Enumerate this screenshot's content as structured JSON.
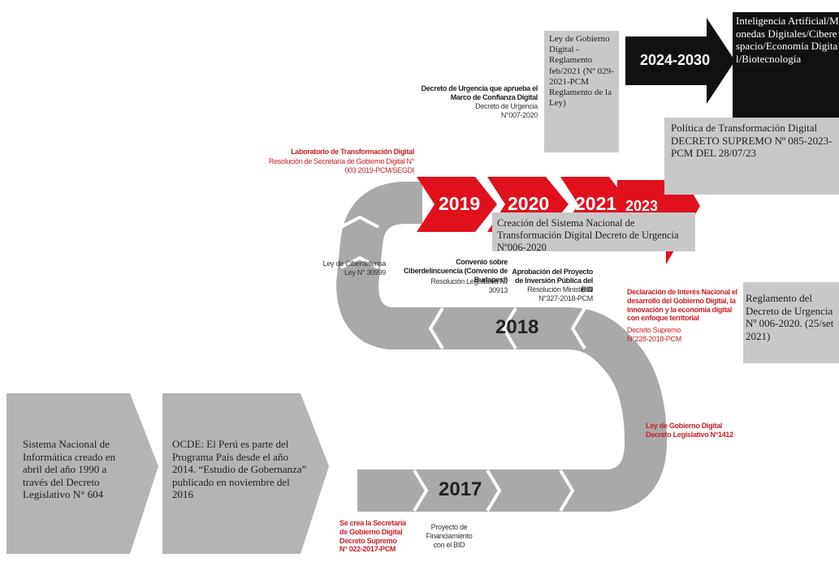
{
  "history": [
    {
      "text": "Sistema Nacional de Informática creado en abril del año 1990 a través del Decreto Legislativo N° 604"
    },
    {
      "text": "OCDE: El Perú es parte del Programa País desde el año 2014. “Estudio de Gobernanza” publicado en noviembre del 2016"
    }
  ],
  "years": [
    "2017",
    "2018",
    "2019",
    "2020",
    "2021",
    "2023",
    "2024-2030"
  ],
  "notes": [
    {
      "title": "Se crea la Secretaría de Gobierno Digital Decreto Supremo N° 022-2017-PCM"
    },
    {
      "detail": "Proyecto de Financiamiento con el BID"
    },
    {
      "title": "Ley de Gobierno Digital Decreto Legislativo N°1412"
    },
    {
      "title": "Declaración de Interés Nacional el desarrollo del Gobierno Digital, la innovación y la economía digital con enfoque territorial",
      "detail": "Decreto Supremo N°228-2018-PCM"
    },
    {
      "title": "Aprobación del Proyecto de Inversión Pública del BID",
      "detail": "Resolución Ministerial N°327-2018-PCM"
    },
    {
      "title": "Convenio sobre Ciberdelincuencia (Convenio de Budapest)",
      "detail": "Resolución Legislativa N° 30913"
    },
    {
      "detail": "Ley de Ciberdefensa Ley N° 30999"
    },
    {
      "title": "Laboratorio de Transformación Digital",
      "detail": "Resolución de Secretaría de Gobierno Digital N° 003 2019-PCM/SEGDI"
    },
    {
      "title": "Decreto de Urgencia que aprueba el Marco de Confianza Digital",
      "detail": "Decreto de Urgencia N°007-2020"
    }
  ],
  "boxes": [
    {
      "text": "Ley de Gobierno Digital - Reglamento feb/2021 (Nº 029-2021-PCM Reglamento de la Ley)"
    },
    {
      "text": "Creación del Sistema Nacional de Transformación Digital Decreto de Urgencia Nº006-2020"
    },
    {
      "text": "Política de Transformación Digital DECRETO SUPREMO Nº 085-2023-PCM  DEL  28/07/23"
    },
    {
      "text": "Inteligencia Artificial/Monedas Digitales/Ciberespacio/Economía Digital/Biotecnología"
    },
    {
      "text": "Reglamento del Decreto de Urgencia Nº 006-2020. (25/set 2021)"
    }
  ]
}
